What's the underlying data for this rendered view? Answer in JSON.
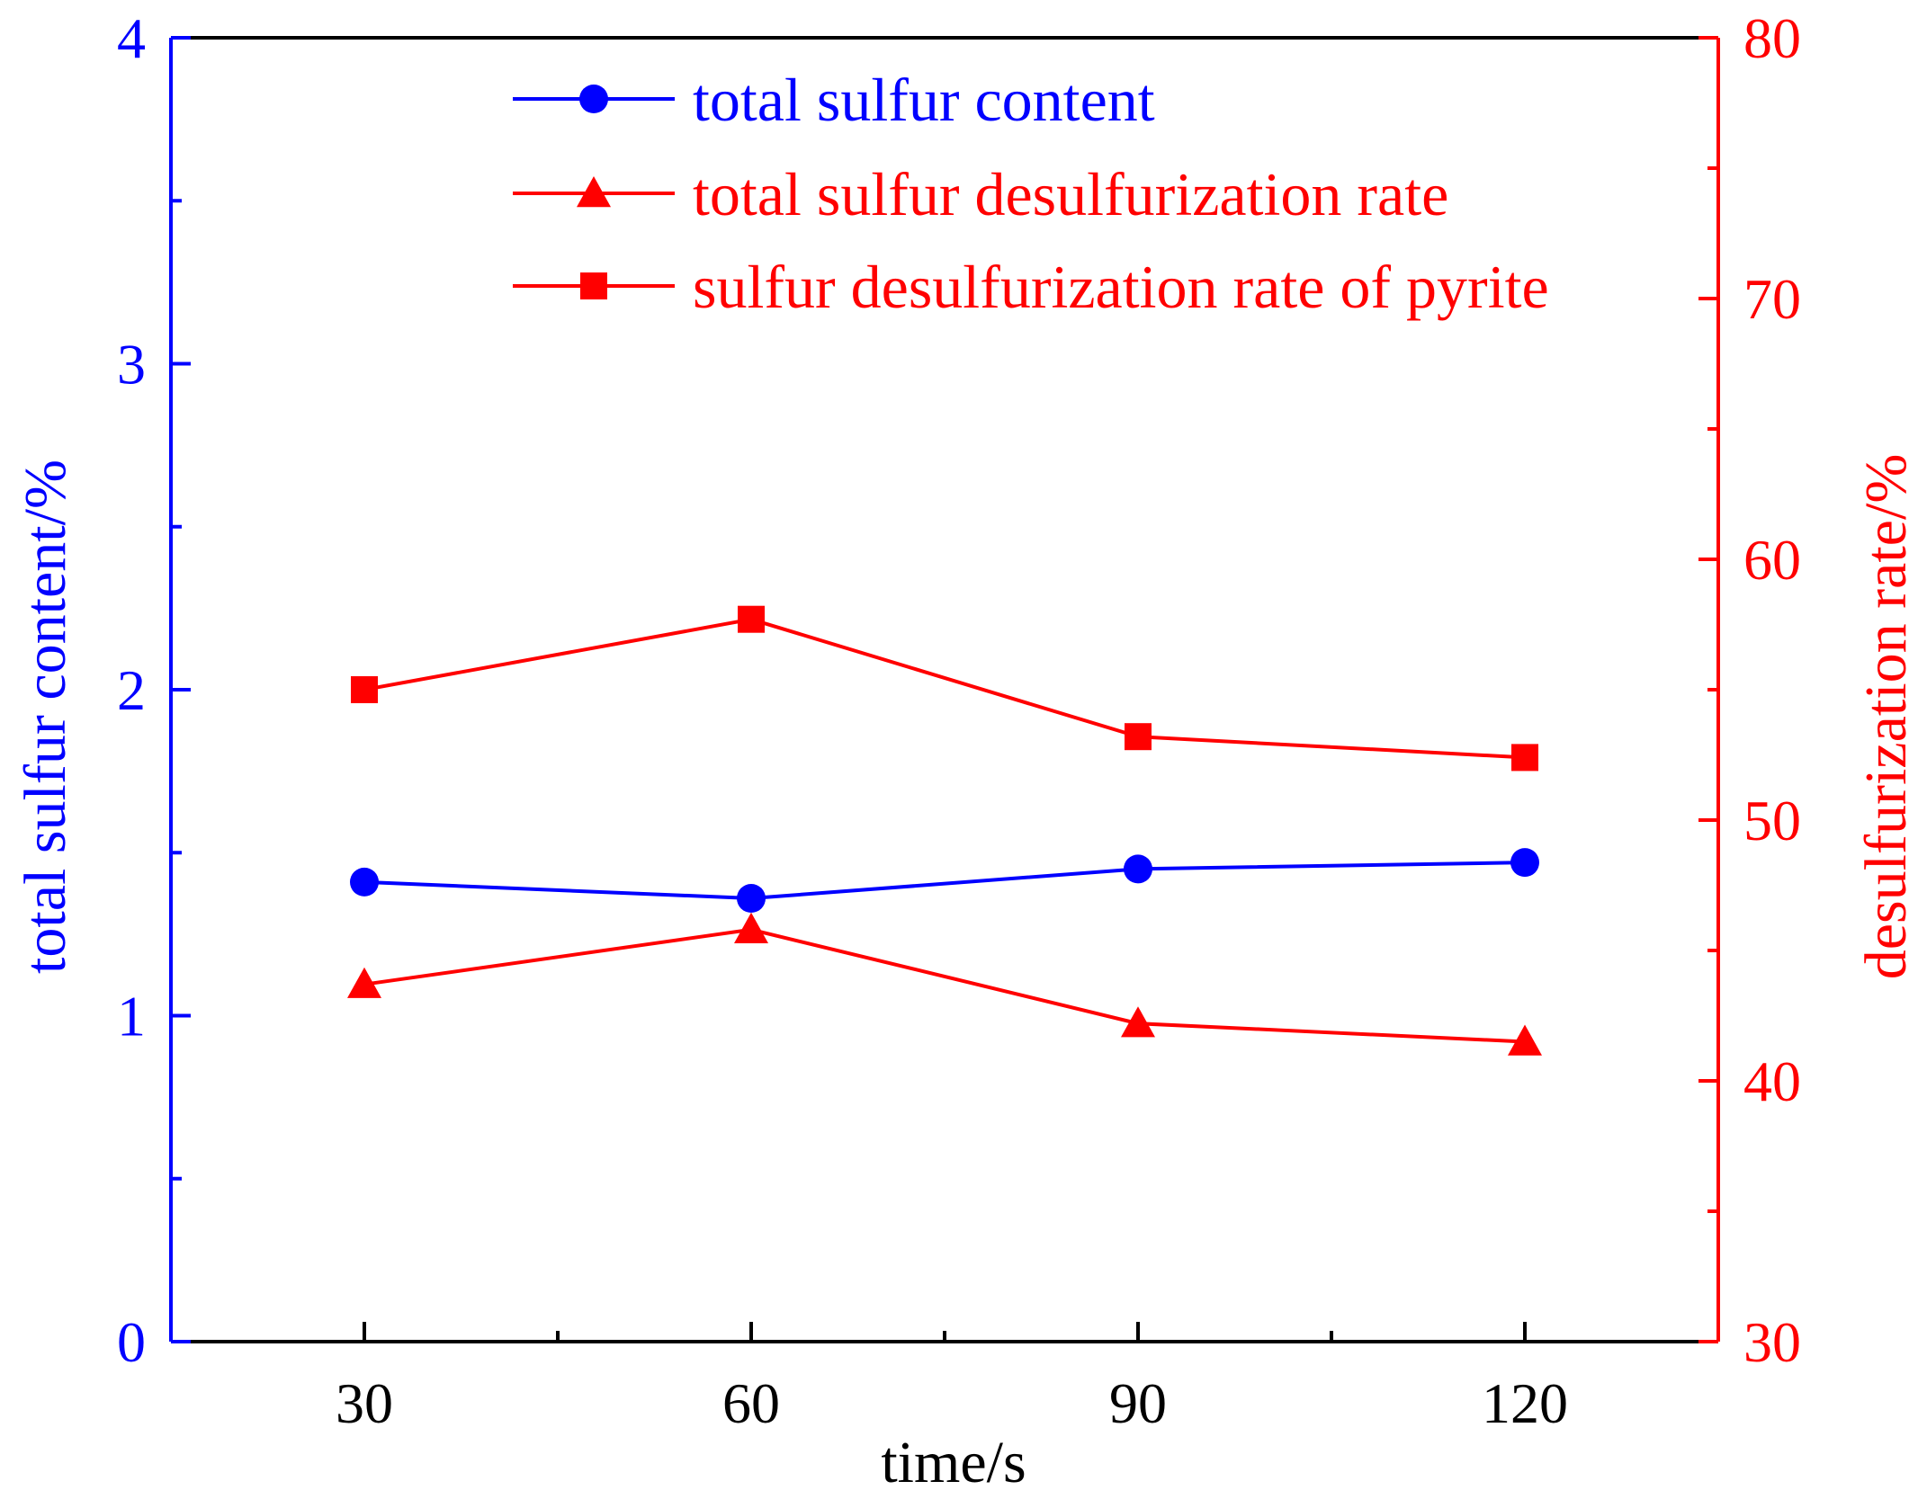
{
  "colors": {
    "left_axis": "#0000ff",
    "right_axis": "#ff0000",
    "x_axis": "#000000"
  },
  "chart_data": {
    "type": "line",
    "title": "",
    "xlabel": "time/s",
    "ylabel_left": "total sulfur content/%",
    "ylabel_right": "desulfurization rate/%",
    "x": [
      30,
      60,
      90,
      120
    ],
    "x_tick_labels": [
      "30",
      "60",
      "90",
      "120"
    ],
    "xlim": [
      15,
      135
    ],
    "ylim_left": [
      0,
      4
    ],
    "ylim_right": [
      30,
      80
    ],
    "y_left_tick_labels": [
      "0",
      "1",
      "2",
      "3",
      "4"
    ],
    "y_right_tick_labels": [
      "30",
      "40",
      "50",
      "60",
      "70",
      "80"
    ],
    "grid": false,
    "legend_position": "top-right",
    "series": [
      {
        "name": "total sulfur content",
        "axis": "left",
        "marker": "circle",
        "color": "#0000ff",
        "values": [
          1.41,
          1.36,
          1.45,
          1.47
        ]
      },
      {
        "name": "total sulfur desulfurization rate",
        "axis": "right",
        "marker": "triangle",
        "color": "#ff0000",
        "values": [
          43.7,
          45.8,
          42.2,
          41.5
        ]
      },
      {
        "name": "sulfur desulfurization rate of pyrite",
        "axis": "right",
        "marker": "square",
        "color": "#ff0000",
        "values": [
          55.0,
          57.7,
          53.2,
          52.4
        ]
      }
    ]
  }
}
